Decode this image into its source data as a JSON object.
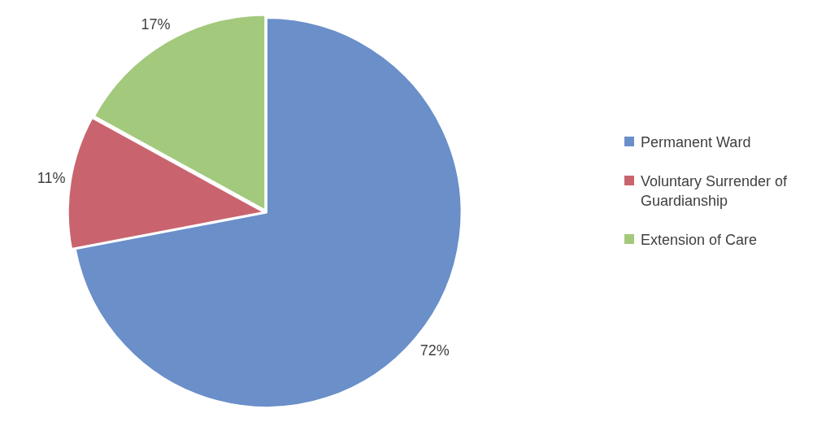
{
  "chart_data": {
    "type": "pie",
    "categories": [
      "Permanent Ward",
      "Voluntary Surrender of Guardianship",
      "Extension of Care"
    ],
    "values": [
      72,
      11,
      17
    ],
    "value_labels": [
      "72%",
      "11%",
      "17%"
    ],
    "colors": [
      "#6a8fc9",
      "#c9646e",
      "#a3c97c"
    ],
    "legend": "right"
  }
}
